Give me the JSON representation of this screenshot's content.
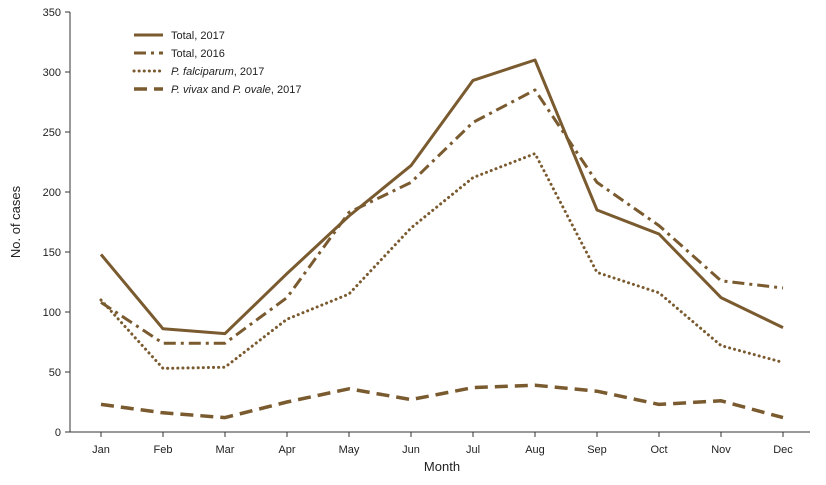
{
  "chart_data": {
    "type": "line",
    "title": "",
    "xlabel": "Month",
    "ylabel": "No. of cases",
    "categories": [
      "Jan",
      "Feb",
      "Mar",
      "Apr",
      "May",
      "Jun",
      "Jul",
      "Aug",
      "Sep",
      "Oct",
      "Nov",
      "Dec"
    ],
    "ylim": [
      0,
      350
    ],
    "yticks": [
      "0",
      "50",
      "100",
      "150",
      "200",
      "250",
      "300",
      "350"
    ],
    "grid": false,
    "legend_position": "top-left",
    "line_color": "#7a5a2f",
    "series": [
      {
        "name": "Total, 2017",
        "legend": [
          "Total, 2017"
        ],
        "style": "solid",
        "values": [
          148,
          86,
          82,
          132,
          180,
          222,
          293,
          310,
          185,
          165,
          112,
          87
        ]
      },
      {
        "name": "Total, 2016",
        "legend": [
          "Total, 2016"
        ],
        "style": "dash-dot",
        "values": [
          108,
          74,
          74,
          112,
          183,
          208,
          258,
          285,
          208,
          172,
          126,
          120
        ]
      },
      {
        "name": "P. falciparum, 2017",
        "legend": [
          "P. falciparum",
          ", 2017"
        ],
        "style": "dotted",
        "values": [
          110,
          53,
          54,
          94,
          115,
          170,
          212,
          232,
          133,
          116,
          72,
          58
        ]
      },
      {
        "name": "P. vivax and P. ovale, 2017",
        "legend": [
          "P. vivax",
          " and ",
          "P. ovale",
          ", 2017"
        ],
        "style": "dashed",
        "values": [
          23,
          16,
          12,
          25,
          36,
          27,
          37,
          39,
          34,
          23,
          26,
          12
        ]
      }
    ]
  }
}
